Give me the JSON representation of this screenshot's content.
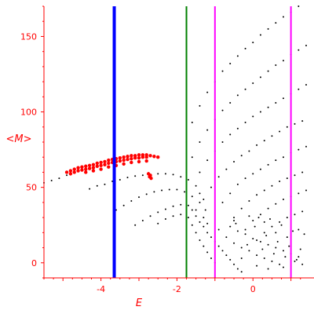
{
  "chart_data": {
    "type": "scatter",
    "xlabel": "E",
    "ylabel": "<M>",
    "xlim": [
      -5.5,
      1.4
    ],
    "ylim": [
      -10,
      170
    ],
    "xticks": [
      -4,
      -2,
      0
    ],
    "yticks": [
      0,
      50,
      100,
      150
    ],
    "grid": false,
    "legend": "none",
    "colors": {
      "axis": "#ff0000",
      "red_band": "#ff0000",
      "black_points": "#000000",
      "blue_line": "#0000ff",
      "green_line": "#008000",
      "magenta_line": "#ff00ff"
    },
    "vertical_lines": [
      {
        "x": -3.65,
        "color": "#0000ff",
        "width": "thick"
      },
      {
        "x": -1.75,
        "color": "#008000",
        "width": "thin"
      },
      {
        "x": -1.0,
        "color": "#ff00ff",
        "width": "thin"
      },
      {
        "x": 1.0,
        "color": "#ff00ff",
        "width": "thin"
      }
    ],
    "series": [
      {
        "color": "#000000",
        "points": [
          [
            -5.5,
            53
          ],
          [
            -5.3,
            54.5
          ],
          [
            -5.1,
            56
          ],
          [
            -4.9,
            58
          ],
          [
            -4.7,
            60
          ],
          [
            -4.3,
            49
          ],
          [
            -4.1,
            51
          ],
          [
            -3.9,
            52
          ],
          [
            -3.7,
            54
          ],
          [
            -3.5,
            55
          ],
          [
            -3.3,
            56.5
          ],
          [
            -3.1,
            57.5
          ],
          [
            -2.9,
            58
          ],
          [
            -2.7,
            58.5
          ],
          [
            -2.5,
            59
          ],
          [
            -2.3,
            59
          ],
          [
            -2.1,
            58.5
          ],
          [
            -1.9,
            57
          ],
          [
            -1.7,
            55
          ],
          [
            -1.5,
            51
          ],
          [
            -1.4,
            46
          ],
          [
            -1.3,
            42
          ],
          [
            -3.6,
            35
          ],
          [
            -3.4,
            38
          ],
          [
            -3.2,
            41
          ],
          [
            -3.0,
            43.5
          ],
          [
            -2.8,
            45.5
          ],
          [
            -2.6,
            47
          ],
          [
            -2.4,
            48
          ],
          [
            -2.2,
            48.5
          ],
          [
            -2.0,
            48.5
          ],
          [
            -1.8,
            47
          ],
          [
            -1.6,
            44
          ],
          [
            -1.4,
            40
          ],
          [
            -1.25,
            35
          ],
          [
            -3.1,
            25
          ],
          [
            -2.9,
            28
          ],
          [
            -2.7,
            31
          ],
          [
            -2.5,
            33.5
          ],
          [
            -2.3,
            35.5
          ],
          [
            -2.1,
            37.5
          ],
          [
            -1.9,
            38.5
          ],
          [
            -1.7,
            38
          ],
          [
            -1.5,
            35
          ],
          [
            -1.3,
            30
          ],
          [
            -1.2,
            26
          ],
          [
            -2.5,
            26
          ],
          [
            -2.3,
            29
          ],
          [
            -2.1,
            31
          ],
          [
            -1.9,
            32
          ],
          [
            -1.75,
            80
          ],
          [
            -1.6,
            93
          ],
          [
            -1.4,
            104
          ],
          [
            -1.2,
            113
          ],
          [
            -1.0,
            120
          ],
          [
            -0.8,
            127
          ],
          [
            -0.6,
            132
          ],
          [
            -0.4,
            137
          ],
          [
            -0.2,
            142
          ],
          [
            0.0,
            146
          ],
          [
            0.2,
            151
          ],
          [
            0.4,
            155
          ],
          [
            0.6,
            159
          ],
          [
            0.8,
            163
          ],
          [
            1.0,
            166
          ],
          [
            1.2,
            170
          ],
          [
            1.4,
            173
          ],
          [
            -1.75,
            60
          ],
          [
            -1.6,
            70
          ],
          [
            -1.4,
            80
          ],
          [
            -1.2,
            88
          ],
          [
            -1.0,
            95
          ],
          [
            -0.8,
            101
          ],
          [
            -0.6,
            106
          ],
          [
            -0.4,
            111
          ],
          [
            -0.2,
            115
          ],
          [
            0.0,
            119
          ],
          [
            0.2,
            123
          ],
          [
            0.4,
            127
          ],
          [
            0.6,
            131
          ],
          [
            0.8,
            134
          ],
          [
            1.0,
            138
          ],
          [
            1.2,
            141
          ],
          [
            1.4,
            144
          ],
          [
            -1.4,
            60
          ],
          [
            -1.2,
            68
          ],
          [
            -1.0,
            74
          ],
          [
            -0.8,
            80
          ],
          [
            -0.6,
            85
          ],
          [
            -0.4,
            89
          ],
          [
            -0.2,
            93
          ],
          [
            0.0,
            97
          ],
          [
            0.2,
            100
          ],
          [
            0.4,
            103
          ],
          [
            0.6,
            106
          ],
          [
            0.8,
            109
          ],
          [
            1.0,
            112
          ],
          [
            1.2,
            115
          ],
          [
            1.4,
            118
          ],
          [
            -1.1,
            50
          ],
          [
            -0.9,
            57
          ],
          [
            -0.7,
            62
          ],
          [
            -0.5,
            67
          ],
          [
            -0.3,
            71
          ],
          [
            -0.1,
            74
          ],
          [
            0.1,
            78
          ],
          [
            0.3,
            81
          ],
          [
            0.5,
            84
          ],
          [
            0.7,
            87
          ],
          [
            0.9,
            90
          ],
          [
            1.1,
            92
          ],
          [
            1.3,
            94
          ],
          [
            -0.8,
            40
          ],
          [
            -0.6,
            46
          ],
          [
            -0.4,
            52
          ],
          [
            -0.2,
            56
          ],
          [
            0.0,
            59
          ],
          [
            0.2,
            62
          ],
          [
            0.4,
            65
          ],
          [
            0.6,
            68
          ],
          [
            0.8,
            70
          ],
          [
            1.0,
            73
          ],
          [
            1.2,
            75
          ],
          [
            1.4,
            77
          ],
          [
            -0.5,
            30
          ],
          [
            -0.3,
            36
          ],
          [
            -0.1,
            41
          ],
          [
            0.1,
            45
          ],
          [
            0.3,
            48
          ],
          [
            0.5,
            51
          ],
          [
            0.7,
            54
          ],
          [
            0.9,
            56
          ],
          [
            1.1,
            58
          ],
          [
            1.3,
            60
          ],
          [
            -0.2,
            22
          ],
          [
            0.0,
            28
          ],
          [
            0.2,
            32
          ],
          [
            0.4,
            36
          ],
          [
            0.6,
            39
          ],
          [
            0.8,
            42
          ],
          [
            1.0,
            44
          ],
          [
            1.2,
            46
          ],
          [
            1.4,
            48
          ],
          [
            0.1,
            15
          ],
          [
            0.3,
            20
          ],
          [
            0.5,
            24
          ],
          [
            0.7,
            27
          ],
          [
            0.9,
            30
          ],
          [
            1.1,
            32
          ],
          [
            1.3,
            34
          ],
          [
            -1.6,
            35
          ],
          [
            -1.5,
            31
          ],
          [
            -1.4,
            27
          ],
          [
            -1.3,
            24
          ],
          [
            -1.2,
            20
          ],
          [
            -1.1,
            17
          ],
          [
            -1.0,
            14
          ],
          [
            -0.9,
            11
          ],
          [
            -0.8,
            8
          ],
          [
            -0.7,
            5
          ],
          [
            -0.6,
            2
          ],
          [
            -0.5,
            -1
          ],
          [
            -0.4,
            -4
          ],
          [
            -0.3,
            -6
          ],
          [
            -1.7,
            30
          ],
          [
            -1.6,
            25
          ],
          [
            -1.5,
            20
          ],
          [
            -1.4,
            15
          ],
          [
            -1.3,
            11
          ],
          [
            -1.2,
            7
          ],
          [
            -1.1,
            3
          ],
          [
            -1.0,
            0
          ],
          [
            -0.6,
            24
          ],
          [
            -0.4,
            21
          ],
          [
            -0.2,
            19
          ],
          [
            0.0,
            16
          ],
          [
            0.2,
            14
          ],
          [
            0.4,
            12
          ],
          [
            0.6,
            10
          ],
          [
            0.8,
            8
          ],
          [
            1.0,
            6
          ],
          [
            1.2,
            4
          ],
          [
            -0.7,
            17
          ],
          [
            -0.5,
            13
          ],
          [
            -0.3,
            10
          ],
          [
            -0.1,
            8
          ],
          [
            0.1,
            5
          ],
          [
            0.3,
            3
          ],
          [
            0.5,
            1
          ],
          [
            0.7,
            -1
          ],
          [
            -0.9,
            22
          ],
          [
            -0.5,
            28
          ],
          [
            -0.1,
            31
          ],
          [
            0.3,
            27
          ],
          [
            0.6,
            20
          ],
          [
            0.9,
            17
          ],
          [
            1.2,
            22
          ],
          [
            -0.3,
            3
          ],
          [
            0.1,
            -2
          ],
          [
            0.4,
            -4
          ],
          [
            0.8,
            -3
          ],
          [
            1.1,
            1
          ],
          [
            1.3,
            -1
          ],
          [
            -0.45,
            26
          ],
          [
            0.05,
            24
          ],
          [
            0.35,
            18
          ],
          [
            0.65,
            14
          ],
          [
            0.95,
            11
          ],
          [
            1.25,
            9
          ],
          [
            -0.15,
            12
          ],
          [
            0.25,
            9
          ],
          [
            0.55,
            6
          ],
          [
            0.85,
            4
          ],
          [
            1.15,
            2
          ],
          [
            0.15,
            30
          ],
          [
            0.45,
            29
          ],
          [
            0.75,
            25
          ],
          [
            1.05,
            21
          ],
          [
            1.35,
            19
          ]
        ]
      },
      {
        "color": "#ff0000",
        "points": [
          [
            -4.9,
            60
          ],
          [
            -4.8,
            61
          ],
          [
            -4.7,
            62
          ],
          [
            -4.6,
            63
          ],
          [
            -4.5,
            63.5
          ],
          [
            -4.4,
            64
          ],
          [
            -4.3,
            64.5
          ],
          [
            -4.2,
            65
          ],
          [
            -4.1,
            66
          ],
          [
            -4.0,
            66.5
          ],
          [
            -3.9,
            67
          ],
          [
            -3.8,
            68
          ],
          [
            -3.7,
            68.5
          ],
          [
            -3.6,
            69
          ],
          [
            -3.5,
            69.5
          ],
          [
            -3.4,
            70
          ],
          [
            -3.3,
            70.5
          ],
          [
            -3.2,
            71
          ],
          [
            -3.1,
            71
          ],
          [
            -3.0,
            71.5
          ],
          [
            -2.9,
            71.5
          ],
          [
            -2.8,
            71.5
          ],
          [
            -2.7,
            71
          ],
          [
            -2.6,
            70.5
          ],
          [
            -2.5,
            70
          ],
          [
            -4.8,
            59
          ],
          [
            -4.7,
            60
          ],
          [
            -4.6,
            61
          ],
          [
            -4.5,
            61.5
          ],
          [
            -4.4,
            62
          ],
          [
            -4.3,
            62.5
          ],
          [
            -4.2,
            63
          ],
          [
            -4.1,
            64
          ],
          [
            -4.0,
            64.5
          ],
          [
            -3.9,
            65
          ],
          [
            -3.8,
            66
          ],
          [
            -3.7,
            66.5
          ],
          [
            -3.6,
            67
          ],
          [
            -3.5,
            67.5
          ],
          [
            -3.4,
            68
          ],
          [
            -3.3,
            68.5
          ],
          [
            -3.2,
            69
          ],
          [
            -3.1,
            69.5
          ],
          [
            -3.0,
            69.5
          ],
          [
            -2.9,
            70
          ],
          [
            -2.8,
            70
          ],
          [
            -4.4,
            60
          ],
          [
            -4.2,
            61
          ],
          [
            -4.0,
            62
          ],
          [
            -3.8,
            63.5
          ],
          [
            -3.6,
            64.5
          ],
          [
            -3.4,
            65.5
          ],
          [
            -3.2,
            66.5
          ],
          [
            -3.0,
            67
          ],
          [
            -2.8,
            67.5
          ],
          [
            -2.75,
            59
          ],
          [
            -2.7,
            58
          ],
          [
            -2.72,
            57
          ],
          [
            -2.68,
            56
          ]
        ]
      }
    ]
  }
}
